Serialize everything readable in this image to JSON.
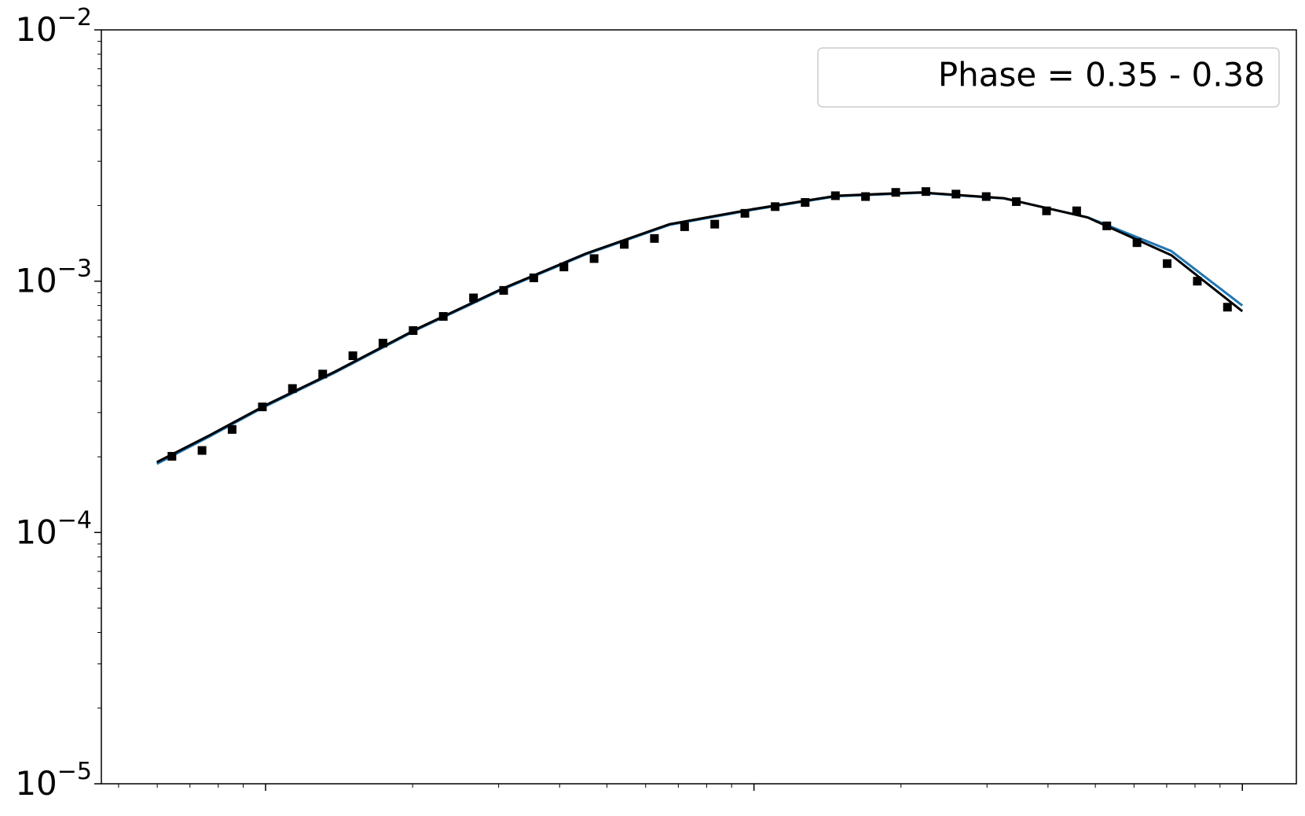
{
  "chart_data": {
    "type": "scatter",
    "xscale": "log",
    "yscale": "log",
    "xlim": [
      0.461,
      129
    ],
    "xticks": [
      1,
      10,
      100
    ],
    "ylim": [
      1e-05,
      0.01
    ],
    "yticks": [
      {
        "value": 0.01,
        "label": "10",
        "exponent": "−2"
      },
      {
        "value": 0.001,
        "label": "10",
        "exponent": "−3"
      },
      {
        "value": 0.0001,
        "label": "10",
        "exponent": "−4"
      },
      {
        "value": 1e-05,
        "label": "10",
        "exponent": "−5"
      }
    ],
    "minor_ticks": true,
    "legend": {
      "text": "Phase = 0.35 - 0.38",
      "loc": "upper right"
    },
    "series": [
      {
        "mode": "line",
        "color": "#1f77b4",
        "x": [
          0.599,
          0.768,
          1,
          1.387,
          2.058,
          3.052,
          4.528,
          6.714,
          9.96,
          14.77,
          21.92,
          32.51,
          48.23,
          71.52,
          100
        ],
        "values": [
          0.0001876,
          0.000241,
          0.000318,
          0.000433,
          0.000646,
          0.000926,
          0.001279,
          0.001675,
          0.001925,
          0.002178,
          0.002248,
          0.002134,
          0.001795,
          0.001318,
          0.0008
        ]
      },
      {
        "mode": "line",
        "color": "#000000",
        "x": [
          0.599,
          0.768,
          1,
          1.387,
          2.058,
          3.052,
          4.528,
          6.714,
          9.96,
          14.77,
          21.92,
          32.51,
          48.23,
          71.52,
          100
        ],
        "values": [
          0.0001905,
          0.0002436,
          0.000321,
          0.0004365,
          0.000651,
          0.000933,
          0.001288,
          0.001686,
          0.001935,
          0.002188,
          0.002256,
          0.002138,
          0.001792,
          0.001269,
          0.000759
        ]
      },
      {
        "mode": "markers",
        "color": "#000000",
        "x": [
          0.643,
          0.741,
          0.854,
          0.985,
          1.135,
          1.309,
          1.509,
          1.739,
          2.005,
          2.311,
          2.665,
          3.072,
          3.541,
          4.082,
          4.706,
          5.425,
          6.254,
          7.21,
          8.311,
          9.581,
          11.05,
          12.73,
          14.68,
          16.92,
          19.51,
          22.49,
          25.92,
          29.89,
          34.45,
          39.72,
          45.79,
          52.78,
          60.85,
          70.15,
          80.87,
          93.22
        ],
        "values": [
          0.000201,
          0.000212,
          0.000257,
          0.000316,
          0.000374,
          0.000427,
          0.000505,
          0.000567,
          0.000636,
          0.000724,
          0.000858,
          0.000919,
          0.001031,
          0.001139,
          0.00123,
          0.001401,
          0.001479,
          0.001647,
          0.001686,
          0.001862,
          0.00198,
          0.002057,
          0.002188,
          0.002171,
          0.002256,
          0.002273,
          0.002221,
          0.002171,
          0.002073,
          0.001905,
          0.001905,
          0.00166,
          0.001423,
          0.001175,
          0.001,
          0.000788
        ]
      }
    ]
  }
}
